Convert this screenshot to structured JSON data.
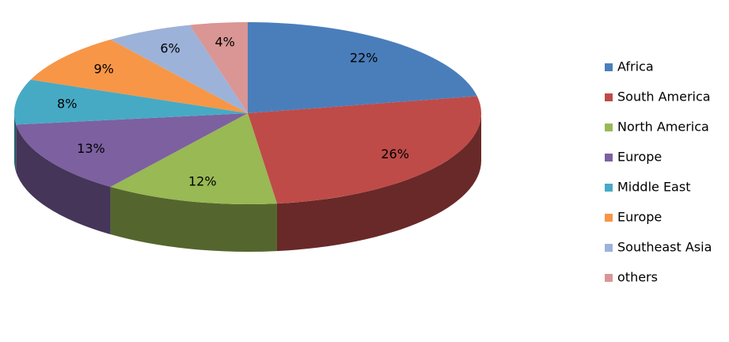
{
  "chart_data": {
    "type": "pie3d",
    "categories": [
      "Africa",
      "South America",
      "North America",
      "Europe",
      "Middle East",
      "Europe",
      "Southeast Asia",
      "others"
    ],
    "values": [
      22,
      26,
      12,
      13,
      8,
      9,
      6,
      4
    ],
    "value_labels": [
      "22%",
      "26%",
      "12%",
      "13%",
      "8%",
      "9%",
      "6%",
      "4%"
    ],
    "colors": [
      "#4a7ebb",
      "#be4b48",
      "#98b954",
      "#7d60a0",
      "#46aac5",
      "#f79646",
      "#9db2d9",
      "#d99694"
    ],
    "legend": "right"
  }
}
